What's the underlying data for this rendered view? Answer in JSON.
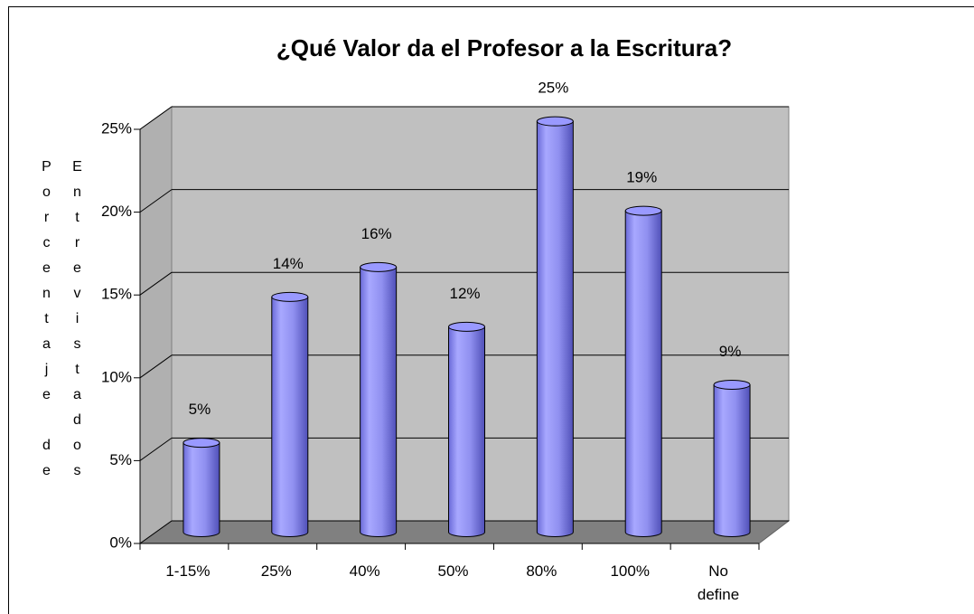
{
  "chart_data": {
    "type": "bar",
    "title": "¿Qué Valor da el Profesor a la Escritura?",
    "ylabel": "Porcentaje de Entrevistados",
    "categories": [
      "1-15%",
      "25%",
      "40%",
      "50%",
      "80%",
      "100%",
      "No define"
    ],
    "values": [
      5.4,
      14.2,
      16,
      12.4,
      24.8,
      19.4,
      8.9
    ],
    "value_labels": [
      "5%",
      "14%",
      "16%",
      "12%",
      "25%",
      "19%",
      "9%"
    ],
    "color": "#9999ff",
    "ylim": [
      0,
      25
    ],
    "yticks": [
      {
        "value": 0,
        "label": "0%"
      },
      {
        "value": 5,
        "label": "5%"
      },
      {
        "value": 10,
        "label": "10%"
      },
      {
        "value": 15,
        "label": "15%"
      },
      {
        "value": 20,
        "label": "20%"
      },
      {
        "value": 25,
        "label": "25%"
      }
    ],
    "grid": true
  }
}
